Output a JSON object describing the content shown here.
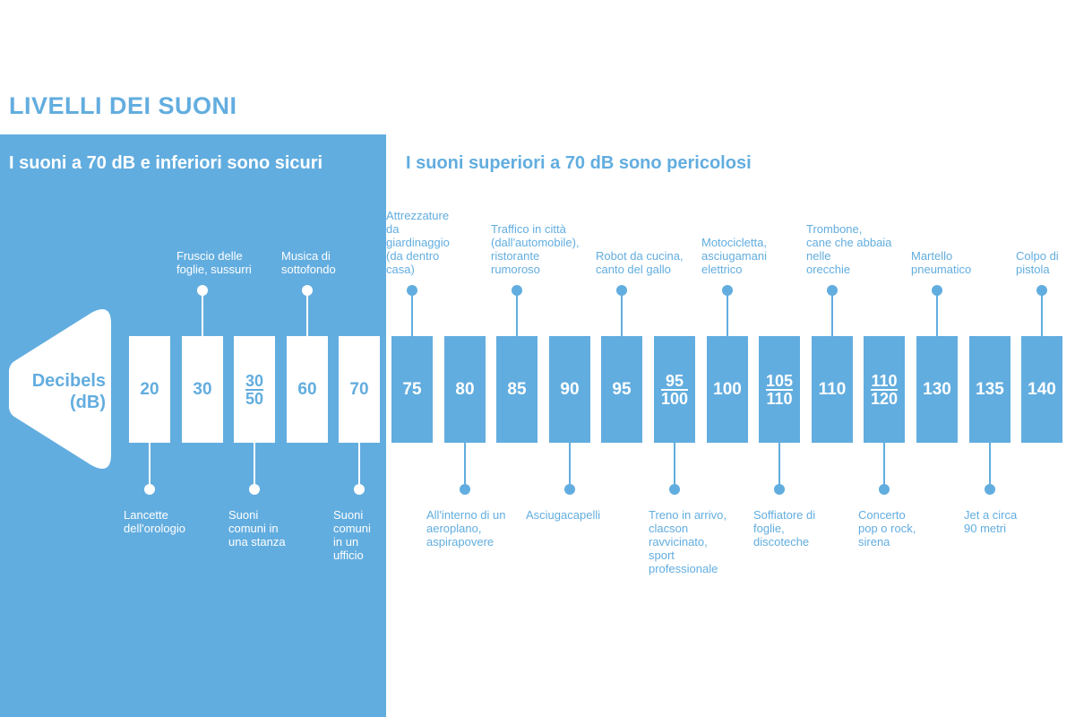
{
  "title": "LIVELLI DEI SUONI",
  "safe_heading": "I suoni a 70 dB e inferiori sono sicuri",
  "danger_heading": "I suoni superiori a 70 dB sono pericolosi",
  "axis_label_line1": "Decibels",
  "axis_label_line2": "(dB)",
  "colors": {
    "blue": "#62addf",
    "white": "#ffffff"
  },
  "levels": [
    {
      "value": "20",
      "zone": "safe",
      "note_position": "below",
      "note": [
        "Lancette",
        "dell'orologio"
      ]
    },
    {
      "value": "30",
      "zone": "safe",
      "note_position": "above",
      "note": [
        "Fruscio delle",
        "foglie, sussurri"
      ]
    },
    {
      "value": "30",
      "value2": "50",
      "zone": "safe",
      "note_position": "below",
      "note": [
        "Suoni",
        "comuni in",
        "una stanza"
      ]
    },
    {
      "value": "60",
      "zone": "safe",
      "note_position": "above",
      "note": [
        "Musica di",
        "sottofondo"
      ]
    },
    {
      "value": "70",
      "zone": "safe",
      "note_position": "below",
      "note": [
        "Suoni",
        "comuni",
        "in un",
        "ufficio"
      ]
    },
    {
      "value": "75",
      "zone": "danger",
      "note_position": "above",
      "note": [
        "Attrezzature",
        "da",
        "giardinaggio",
        "(da dentro",
        "casa)"
      ]
    },
    {
      "value": "80",
      "zone": "danger",
      "note_position": "below",
      "note": [
        "All'interno di un",
        "aeroplano,",
        "aspirapovere"
      ]
    },
    {
      "value": "85",
      "zone": "danger",
      "note_position": "above",
      "note": [
        "Traffico in città",
        "(dall'automobile),",
        "ristorante",
        "rumoroso"
      ]
    },
    {
      "value": "90",
      "zone": "danger",
      "note_position": "below",
      "note": [
        "Asciugacapelli"
      ]
    },
    {
      "value": "95",
      "zone": "danger",
      "note_position": "above",
      "note": [
        "Robot da cucina,",
        "canto del gallo"
      ]
    },
    {
      "value": "95",
      "value2": "100",
      "zone": "danger",
      "note_position": "below",
      "note": [
        "Treno in arrivo,",
        "clacson",
        "ravvicinato,",
        "sport",
        "professionale"
      ]
    },
    {
      "value": "100",
      "zone": "danger",
      "note_position": "above",
      "note": [
        "Motocicletta,",
        "asciugamani",
        "elettrico"
      ]
    },
    {
      "value": "105",
      "value2": "110",
      "zone": "danger",
      "note_position": "below",
      "note": [
        "Soffiatore di",
        "foglie,",
        "discoteche"
      ]
    },
    {
      "value": "110",
      "zone": "danger",
      "note_position": "above",
      "note": [
        "Trombone,",
        "cane che abbaia",
        "nelle",
        "orecchie"
      ]
    },
    {
      "value": "110",
      "value2": "120",
      "zone": "danger",
      "note_position": "below",
      "note": [
        "Concerto",
        "pop o rock,",
        "sirena"
      ]
    },
    {
      "value": "130",
      "zone": "danger",
      "note_position": "above",
      "note": [
        "Martello",
        "pneumatico"
      ]
    },
    {
      "value": "135",
      "zone": "danger",
      "note_position": "below",
      "note": [
        "Jet a circa",
        "90 metri"
      ]
    },
    {
      "value": "140",
      "zone": "danger",
      "note_position": "above",
      "note": [
        "Colpo di",
        "pistola"
      ]
    }
  ]
}
